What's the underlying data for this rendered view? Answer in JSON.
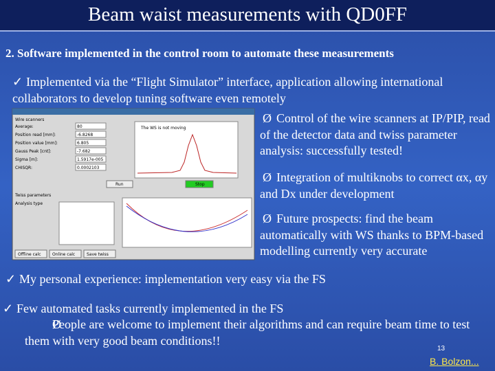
{
  "header": {
    "title": "Beam waist measurements with QD0FF"
  },
  "subtitle": "2. Software implemented in the control room to automate these measurements",
  "bullets": [
    {
      "marker": "✓",
      "text": "Implemented via the “Flight Simulator” interface, application allowing international collaborators to develop tuning software even remotely"
    },
    {
      "marker": "✓",
      "text": "My personal experience: implementation very easy via the FS"
    },
    {
      "marker": "✓",
      "text": "Few automated tasks currently implemented in the FS"
    }
  ],
  "side_items": [
    {
      "marker": "Ø",
      "text": "Control of the wire scanners at IP/PIP, read of the detector data and twiss parameter analysis: successfully tested!"
    },
    {
      "marker": "Ø",
      "text": "Integration of multiknobs to correct αx, αy and Dx under development"
    },
    {
      "marker": "Ø",
      "text": "Future prospects: find the beam automatically with WS thanks to BPM-based modelling currently very accurate"
    }
  ],
  "sub_item": {
    "marker": "Ø",
    "text": "People are welcome to implement their algorithms and can require beam time to test them with very good beam conditions!!"
  },
  "screenshot": {
    "panel1": "Wire scanners",
    "labels": [
      "Average:",
      "Position read [mm]:",
      "Position value [mm]:",
      "Gauss Peak [cnt]:",
      "Sigma [m]:",
      "CHISQR:"
    ],
    "values": [
      "80",
      "-6.8268",
      "6.805",
      "-7.682",
      "1.5917e-005",
      "0.0002103"
    ],
    "plot_title": "The WS is not moving",
    "run": "Run",
    "stop": "Stop",
    "panel2": "Twiss parameters",
    "panel2_label": "Analysis type",
    "buttons": [
      "Offline calc",
      "Online calc",
      "Save twiss"
    ]
  },
  "footer": {
    "page": "13",
    "author": "B. Bolzon..."
  }
}
